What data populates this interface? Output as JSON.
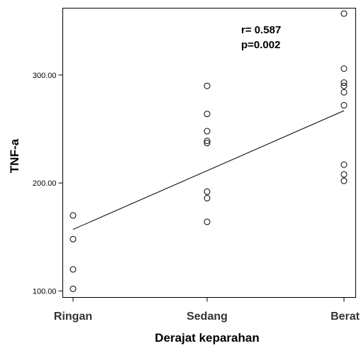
{
  "chart_data": {
    "type": "scatter",
    "xlabel": "Derajat keparahan",
    "ylabel": "TNF-a",
    "categories": [
      "Ringan",
      "Sedang",
      "Berat"
    ],
    "y_ticks": [
      "100.00",
      "200.00",
      "300.00"
    ],
    "y_tick_values": [
      100,
      200,
      300
    ],
    "ylim": [
      94,
      362
    ],
    "grid": false,
    "annotations": [
      "r= 0.587",
      "p=0.002"
    ],
    "points": [
      {
        "x": "Ringan",
        "y": 170
      },
      {
        "x": "Ringan",
        "y": 148
      },
      {
        "x": "Ringan",
        "y": 120
      },
      {
        "x": "Ringan",
        "y": 102
      },
      {
        "x": "Sedang",
        "y": 290
      },
      {
        "x": "Sedang",
        "y": 264
      },
      {
        "x": "Sedang",
        "y": 248
      },
      {
        "x": "Sedang",
        "y": 239
      },
      {
        "x": "Sedang",
        "y": 237
      },
      {
        "x": "Sedang",
        "y": 192
      },
      {
        "x": "Sedang",
        "y": 186
      },
      {
        "x": "Sedang",
        "y": 164
      },
      {
        "x": "Berat",
        "y": 357
      },
      {
        "x": "Berat",
        "y": 306
      },
      {
        "x": "Berat",
        "y": 293
      },
      {
        "x": "Berat",
        "y": 290
      },
      {
        "x": "Berat",
        "y": 284
      },
      {
        "x": "Berat",
        "y": 272
      },
      {
        "x": "Berat",
        "y": 217
      },
      {
        "x": "Berat",
        "y": 208
      },
      {
        "x": "Berat",
        "y": 202
      }
    ],
    "fit_line": {
      "start": {
        "x": "Ringan",
        "y": 157
      },
      "end": {
        "x": "Berat",
        "y": 267
      }
    }
  }
}
